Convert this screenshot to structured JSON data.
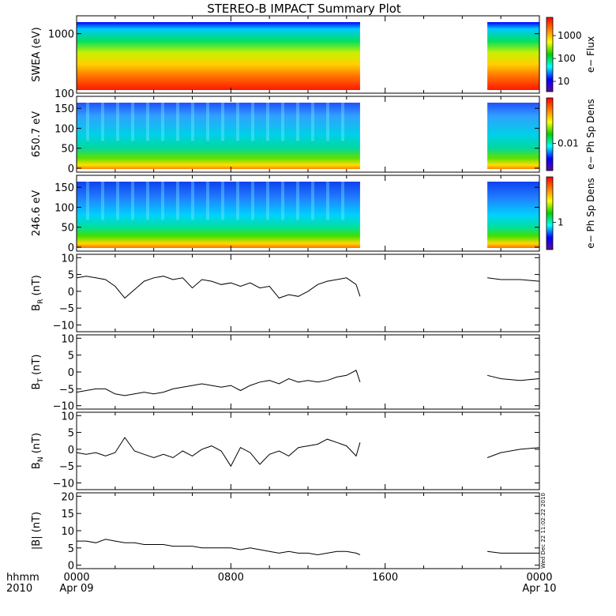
{
  "colors": {
    "background": "#ffffff",
    "axes": "#000000",
    "trace": "#000000",
    "colorscale": [
      "#5a0aa0",
      "#0000ff",
      "#00ffff",
      "#00d000",
      "#ffff00",
      "#ff8000",
      "#ff0000"
    ]
  },
  "chart_data": {
    "title": "STEREO-B IMPACT Summary Plot",
    "x_axis": {
      "range_hours": [
        0,
        24
      ],
      "ticks": [
        {
          "hour": 0,
          "label": "0000",
          "sublabel": "Apr 09"
        },
        {
          "hour": 8,
          "label": "0800",
          "sublabel": ""
        },
        {
          "hour": 16,
          "label": "1600",
          "sublabel": ""
        },
        {
          "hour": 24,
          "label": "0000",
          "sublabel": "Apr 10"
        }
      ],
      "corner_label": "hhmm",
      "corner_sublabel": "2010"
    },
    "data_gap_hours": [
      14.7,
      21.3
    ],
    "stamp": "Wed Dec 22 11:02:22 2010",
    "panels": [
      {
        "type": "heatmap",
        "ylabel": "SWEA (eV)",
        "ylog": true,
        "yticks": [
          {
            "value": 100,
            "label": "100"
          },
          {
            "value": 1000,
            "label": "1000"
          }
        ],
        "ylim": [
          100,
          2000
        ],
        "colorbar": {
          "label": "e− Flux",
          "ticks": [
            {
              "label": "1000"
            },
            {
              "label": "100"
            },
            {
              "label": "10"
            }
          ]
        }
      },
      {
        "type": "heatmap",
        "ylabel": "650.7 eV",
        "yticks": [
          {
            "value": 0,
            "label": "0"
          },
          {
            "value": 50,
            "label": "50"
          },
          {
            "value": 100,
            "label": "100"
          },
          {
            "value": 150,
            "label": "150"
          }
        ],
        "ylim": [
          -10,
          180
        ],
        "colorbar": {
          "label": "e− Ph Sp Dens",
          "ticks": [
            {
              "label": "0.01"
            }
          ]
        }
      },
      {
        "type": "heatmap",
        "ylabel": "246.6 eV",
        "yticks": [
          {
            "value": 0,
            "label": "0"
          },
          {
            "value": 50,
            "label": "50"
          },
          {
            "value": 100,
            "label": "100"
          },
          {
            "value": 150,
            "label": "150"
          }
        ],
        "ylim": [
          -10,
          180
        ],
        "colorbar": {
          "label": "e− Ph Sp Dens",
          "ticks": [
            {
              "label": "1"
            }
          ]
        }
      },
      {
        "type": "line",
        "ylabel_main": "B",
        "ylabel_sub": "R",
        "ylabel_unit": " (nT)",
        "ylim": [
          -12,
          11
        ],
        "yticks": [
          {
            "value": 10,
            "label": "10"
          },
          {
            "value": 5,
            "label": "5"
          },
          {
            "value": 0,
            "label": "0"
          },
          {
            "value": -5,
            "label": "−5"
          },
          {
            "value": -10,
            "label": "−10"
          }
        ],
        "x": [
          0,
          0.5,
          1,
          1.5,
          2,
          2.5,
          3,
          3.5,
          4,
          4.5,
          5,
          5.5,
          6,
          6.5,
          7,
          7.5,
          8,
          8.5,
          9,
          9.5,
          10,
          10.5,
          11,
          11.5,
          12,
          12.5,
          13,
          13.5,
          14,
          14.5,
          14.7,
          21.3,
          22,
          23,
          24
        ],
        "y": [
          4,
          4.5,
          4,
          3.5,
          1.5,
          -2,
          0.5,
          3,
          4,
          4.5,
          3.5,
          4,
          1,
          3.5,
          3,
          2,
          2.5,
          1.5,
          2.5,
          1,
          1.5,
          -2,
          -1,
          -1.5,
          0,
          2,
          3,
          3.5,
          4,
          2,
          -1.5,
          4,
          3.5,
          3.5,
          3
        ]
      },
      {
        "type": "line",
        "ylabel_main": "B",
        "ylabel_sub": "T",
        "ylabel_unit": " (nT)",
        "ylim": [
          -11,
          11
        ],
        "yticks": [
          {
            "value": 10,
            "label": "10"
          },
          {
            "value": 5,
            "label": "5"
          },
          {
            "value": 0,
            "label": "0"
          },
          {
            "value": -5,
            "label": "−5"
          },
          {
            "value": -10,
            "label": "−10"
          }
        ],
        "x": [
          0,
          0.5,
          1,
          1.5,
          2,
          2.5,
          3,
          3.5,
          4,
          4.5,
          5,
          5.5,
          6,
          6.5,
          7,
          7.5,
          8,
          8.5,
          9,
          9.5,
          10,
          10.5,
          11,
          11.5,
          12,
          12.5,
          13,
          13.5,
          14,
          14.5,
          14.7,
          21.3,
          22,
          23,
          24
        ],
        "y": [
          -6,
          -5.5,
          -5,
          -5,
          -6.5,
          -7,
          -6.5,
          -6,
          -6.5,
          -6,
          -5,
          -4.5,
          -4,
          -3.5,
          -4,
          -4.5,
          -4,
          -5.5,
          -4,
          -3,
          -2.5,
          -3.5,
          -2,
          -3,
          -2.5,
          -3,
          -2.5,
          -1.5,
          -1,
          0.5,
          -3,
          -1,
          -2,
          -2.5,
          -2
        ]
      },
      {
        "type": "line",
        "ylabel_main": "B",
        "ylabel_sub": "N",
        "ylabel_unit": " (nT)",
        "ylim": [
          -12,
          11
        ],
        "yticks": [
          {
            "value": 10,
            "label": "10"
          },
          {
            "value": 5,
            "label": "5"
          },
          {
            "value": 0,
            "label": "0"
          },
          {
            "value": -5,
            "label": "−5"
          },
          {
            "value": -10,
            "label": "−10"
          }
        ],
        "x": [
          0,
          0.5,
          1,
          1.5,
          2,
          2.5,
          3,
          3.5,
          4,
          4.5,
          5,
          5.5,
          6,
          6.5,
          7,
          7.5,
          8,
          8.5,
          9,
          9.5,
          10,
          10.5,
          11,
          11.5,
          12,
          12.5,
          13,
          13.5,
          14,
          14.5,
          14.7,
          21.3,
          22,
          23,
          24
        ],
        "y": [
          -1,
          -1.5,
          -1,
          -2,
          -1,
          3.5,
          -0.5,
          -1.5,
          -2.5,
          -1.5,
          -2.5,
          -0.5,
          -2,
          0,
          1,
          -0.5,
          -5,
          0.5,
          -1,
          -4.5,
          -1.5,
          -0.5,
          -2,
          0.5,
          1,
          1.5,
          3,
          2,
          1,
          -2,
          2,
          -2.5,
          -1,
          0,
          0.5
        ]
      },
      {
        "type": "line",
        "ylabel_main": "|B|",
        "ylabel_sub": "",
        "ylabel_unit": " (nT)",
        "ylim": [
          -1,
          21
        ],
        "yticks": [
          {
            "value": 20,
            "label": "20"
          },
          {
            "value": 15,
            "label": "15"
          },
          {
            "value": 10,
            "label": "10"
          },
          {
            "value": 5,
            "label": "5"
          },
          {
            "value": 0,
            "label": "0"
          }
        ],
        "x": [
          0,
          0.5,
          1,
          1.5,
          2,
          2.5,
          3,
          3.5,
          4,
          4.5,
          5,
          5.5,
          6,
          6.5,
          7,
          7.5,
          8,
          8.5,
          9,
          9.5,
          10,
          10.5,
          11,
          11.5,
          12,
          12.5,
          13,
          13.5,
          14,
          14.5,
          14.7,
          21.3,
          22,
          23,
          24
        ],
        "y": [
          7,
          7,
          6.5,
          7.5,
          7,
          6.5,
          6.5,
          6,
          6,
          6,
          5.5,
          5.5,
          5.5,
          5,
          5,
          5,
          5,
          4.5,
          5,
          4.5,
          4,
          3.5,
          4,
          3.5,
          3.5,
          3,
          3.5,
          4,
          4,
          3.5,
          3,
          4,
          3.5,
          3.5,
          3.5
        ]
      }
    ]
  }
}
